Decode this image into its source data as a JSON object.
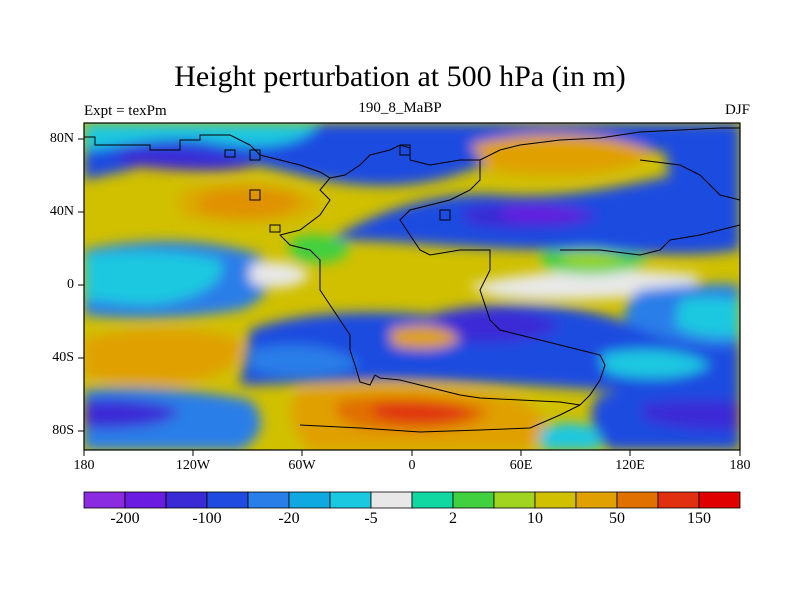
{
  "title": "Height perturbation at 500 hPa (in m)",
  "subtitle_left": "Expt = texPm",
  "subtitle_center": "190_8_MaBP",
  "subtitle_right": "DJF",
  "y_ticks": [
    "80N",
    "40N",
    "0",
    "40S",
    "80S"
  ],
  "x_ticks": [
    "180",
    "120W",
    "60W",
    "0",
    "60E",
    "120E",
    "180"
  ],
  "colorbar": {
    "colors": [
      "#8a2be2",
      "#6a1de0",
      "#3a2ad6",
      "#1f4be0",
      "#2a7ee8",
      "#10a8e0",
      "#1ac8e0",
      "#e8e8e8",
      "#10d8a0",
      "#40d040",
      "#a0d420",
      "#d0c000",
      "#e0a000",
      "#e07000",
      "#e03010",
      "#e00000"
    ],
    "labels": [
      "-200",
      "-100",
      "-20",
      "-5",
      "2",
      "10",
      "50",
      "150"
    ]
  },
  "legend_colors": {
    "strong_positive": "#e07000",
    "positive": "#e0a000",
    "moderate_positive": "#d0c000",
    "weak_positive": "#a0d420",
    "near_zero": "#e8e8e8",
    "weak_negative": "#1ac8e0",
    "negative": "#2a7ee8",
    "strong_negative": "#3a2ad6",
    "very_strong_negative": "#6a1de0"
  }
}
